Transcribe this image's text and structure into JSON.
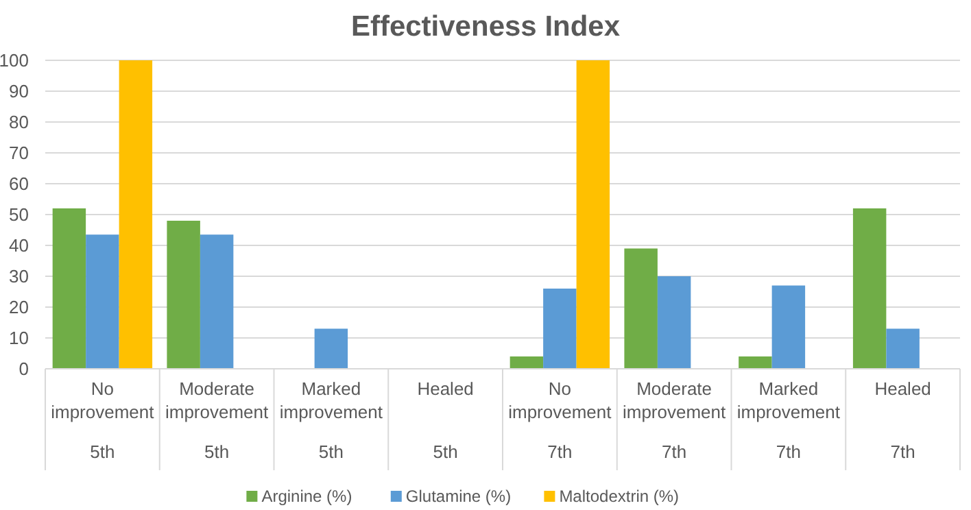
{
  "chart_data": {
    "type": "bar",
    "title": "Effectiveness Index",
    "categories": [
      "No improvement\n5th",
      "Moderate improvement\n5th",
      "Marked improvement\n5th",
      "Healed\n5th",
      "No improvement\n7th",
      "Moderate improvement\n7th",
      "Marked improvement\n7th",
      "Healed\n7th"
    ],
    "series": [
      {
        "name": "Arginine (%)",
        "color": "#70ad47",
        "values": [
          52,
          48,
          0,
          0,
          4,
          39,
          4,
          52
        ]
      },
      {
        "name": "Glutamine (%)",
        "color": "#5b9bd5",
        "values": [
          43.5,
          43.5,
          13,
          0,
          26,
          30,
          27,
          13
        ]
      },
      {
        "name": "Maltodextrin (%)",
        "color": "#ffc000",
        "values": [
          100,
          0,
          0,
          0,
          100,
          0,
          0,
          0
        ]
      }
    ],
    "ylim": [
      0,
      100
    ],
    "yticks": [
      0,
      10,
      20,
      30,
      40,
      50,
      60,
      70,
      80,
      90,
      100
    ],
    "grid": "y",
    "legend": "bottom"
  }
}
